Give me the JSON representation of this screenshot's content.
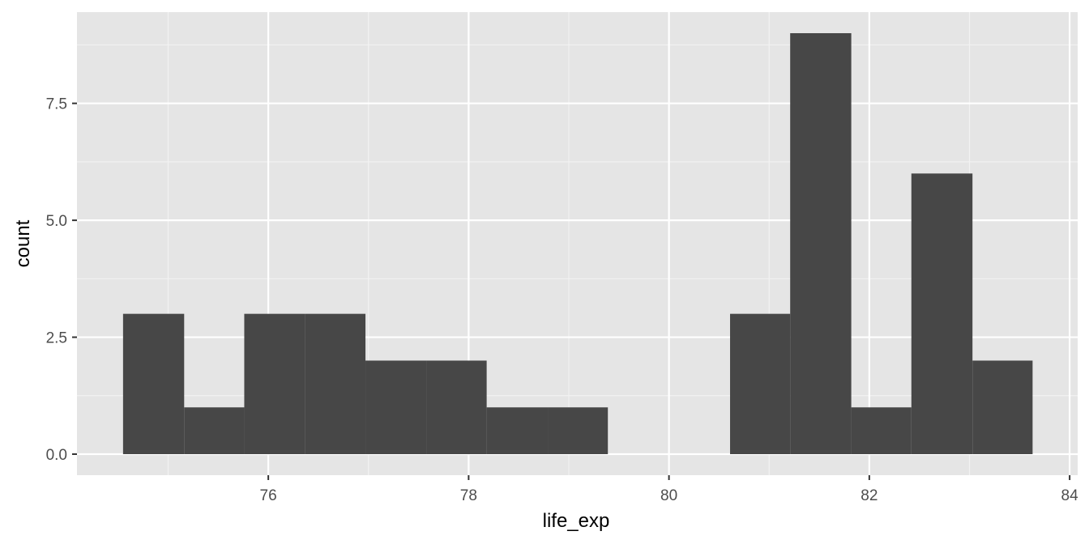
{
  "chart_data": {
    "type": "bar",
    "title": "",
    "xlabel": "life_exp",
    "ylabel": "count",
    "bins": [
      {
        "x0": 74.55,
        "x1": 75.16,
        "count": 3
      },
      {
        "x0": 75.16,
        "x1": 75.76,
        "count": 1
      },
      {
        "x0": 75.76,
        "x1": 76.37,
        "count": 3
      },
      {
        "x0": 76.37,
        "x1": 76.97,
        "count": 3
      },
      {
        "x0": 76.97,
        "x1": 77.58,
        "count": 2
      },
      {
        "x0": 77.58,
        "x1": 78.18,
        "count": 2
      },
      {
        "x0": 78.18,
        "x1": 78.79,
        "count": 1
      },
      {
        "x0": 78.79,
        "x1": 79.39,
        "count": 1
      },
      {
        "x0": 79.39,
        "x1": 80.0,
        "count": 0
      },
      {
        "x0": 80.0,
        "x1": 80.61,
        "count": 0
      },
      {
        "x0": 80.61,
        "x1": 81.21,
        "count": 3
      },
      {
        "x0": 81.21,
        "x1": 81.82,
        "count": 9
      },
      {
        "x0": 81.82,
        "x1": 82.42,
        "count": 1
      },
      {
        "x0": 82.42,
        "x1": 83.03,
        "count": 6
      },
      {
        "x0": 83.03,
        "x1": 83.63,
        "count": 2
      }
    ],
    "xlim": [
      74.09,
      84.08
    ],
    "ylim": [
      -0.45,
      9.45
    ],
    "x_ticks": [
      76,
      78,
      80,
      82,
      84
    ],
    "x_tick_labels": [
      "76",
      "78",
      "80",
      "82",
      "84"
    ],
    "y_ticks": [
      0,
      2.5,
      5,
      7.5
    ],
    "y_tick_labels": [
      "0.0",
      "2.5",
      "5.0",
      "7.5"
    ],
    "grid": true,
    "legend": "none",
    "colors": {
      "panel": "#e5e5e5",
      "grid_major": "#ffffff",
      "grid_minor": "#f2f2f2",
      "bar": "#474747",
      "axis_text": "#4d4d4d",
      "axis_title": "#000000",
      "tick": "#333333"
    }
  }
}
